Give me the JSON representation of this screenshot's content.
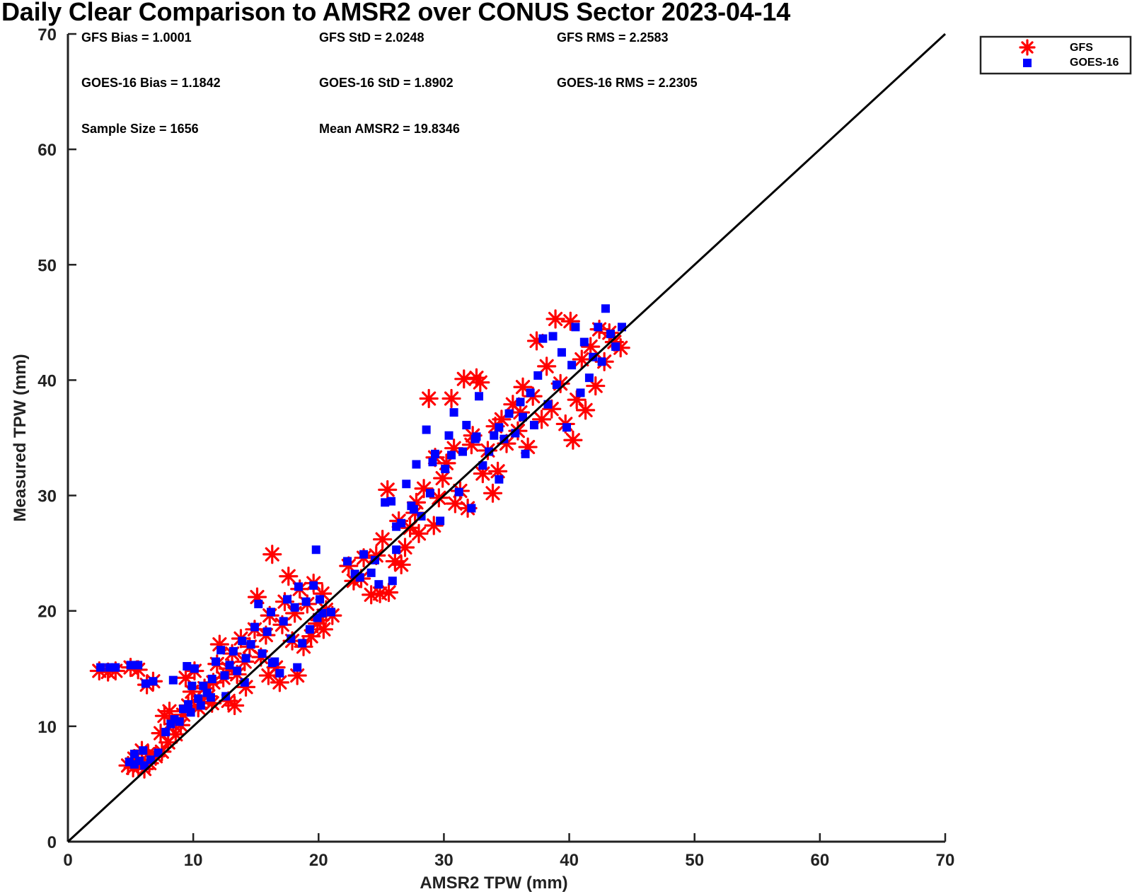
{
  "chart_data": {
    "type": "scatter",
    "title": "Daily Clear Comparison to AMSR2 over CONUS Sector 2023-04-14",
    "xlabel": "AMSR2 TPW (mm)",
    "ylabel": "Measured TPW (mm)",
    "xlim": [
      0,
      70
    ],
    "ylim": [
      0,
      70
    ],
    "xticks": [
      "0",
      "10",
      "20",
      "30",
      "40",
      "50",
      "60",
      "70"
    ],
    "yticks": [
      "0",
      "10",
      "20",
      "30",
      "40",
      "50",
      "60",
      "70"
    ],
    "grid": false,
    "legend_position": "outside-top-right",
    "reference_line": {
      "from": [
        0,
        0
      ],
      "to": [
        70,
        70
      ],
      "color": "#000000"
    },
    "stats": {
      "gfs_bias": "GFS Bias = 1.0001",
      "gfs_std": "GFS StD = 2.0248",
      "gfs_rms": "GFS RMS = 2.2583",
      "goes_bias": "GOES-16 Bias = 1.1842",
      "goes_std": "GOES-16 StD = 1.8902",
      "goes_rms": "GOES-16 RMS = 2.2305",
      "sample_size": "Sample Size = 1656",
      "mean_amsr2": "Mean AMSR2 = 19.8346"
    },
    "series": [
      {
        "name": "GFS",
        "marker": "asterisk",
        "color": "#ff0000",
        "points": [
          [
            2.5,
            14.8
          ],
          [
            3.2,
            14.7
          ],
          [
            3.8,
            14.8
          ],
          [
            5.0,
            15.1
          ],
          [
            5.6,
            14.9
          ],
          [
            6.3,
            13.6
          ],
          [
            6.8,
            13.9
          ],
          [
            4.8,
            6.6
          ],
          [
            5.2,
            6.4
          ],
          [
            5.6,
            6.7
          ],
          [
            6.1,
            6.3
          ],
          [
            6.5,
            6.8
          ],
          [
            7.0,
            7.4
          ],
          [
            5.3,
            7.2
          ],
          [
            5.9,
            7.9
          ],
          [
            6.4,
            7.6
          ],
          [
            7.5,
            7.8
          ],
          [
            8.0,
            8.6
          ],
          [
            8.6,
            9.3
          ],
          [
            7.4,
            9.4
          ],
          [
            7.7,
            10.9
          ],
          [
            8.1,
            11.3
          ],
          [
            8.4,
            10.2
          ],
          [
            9.0,
            10.1
          ],
          [
            9.2,
            11.0
          ],
          [
            9.6,
            11.8
          ],
          [
            9.9,
            13.0
          ],
          [
            10.1,
            14.8
          ],
          [
            10.5,
            12.1
          ],
          [
            10.9,
            13.3
          ],
          [
            11.2,
            12.6
          ],
          [
            11.6,
            13.8
          ],
          [
            11.9,
            15.4
          ],
          [
            12.1,
            17.1
          ],
          [
            12.4,
            14.2
          ],
          [
            12.8,
            15.0
          ],
          [
            13.1,
            16.3
          ],
          [
            13.5,
            14.5
          ],
          [
            13.8,
            17.6
          ],
          [
            14.1,
            15.6
          ],
          [
            14.5,
            16.9
          ],
          [
            14.9,
            18.4
          ],
          [
            15.1,
            21.2
          ],
          [
            15.4,
            16.0
          ],
          [
            15.8,
            17.9
          ],
          [
            16.1,
            19.6
          ],
          [
            16.3,
            24.9
          ],
          [
            16.6,
            15.1
          ],
          [
            16.9,
            13.8
          ],
          [
            17.1,
            18.8
          ],
          [
            17.3,
            20.8
          ],
          [
            17.6,
            23.0
          ],
          [
            17.9,
            17.4
          ],
          [
            18.1,
            19.8
          ],
          [
            18.5,
            21.9
          ],
          [
            18.8,
            16.9
          ],
          [
            19.1,
            20.6
          ],
          [
            19.4,
            17.8
          ],
          [
            19.6,
            22.4
          ],
          [
            19.9,
            18.9
          ],
          [
            20.1,
            19.2
          ],
          [
            20.3,
            21.5
          ],
          [
            20.6,
            20.1
          ],
          [
            20.4,
            18.4
          ],
          [
            16.0,
            14.4
          ],
          [
            14.2,
            13.4
          ],
          [
            12.8,
            12.2
          ],
          [
            11.5,
            12.0
          ],
          [
            13.3,
            11.8
          ],
          [
            18.3,
            14.4
          ],
          [
            10.4,
            11.6
          ],
          [
            9.4,
            14.2
          ],
          [
            22.4,
            23.9
          ],
          [
            22.8,
            22.6
          ],
          [
            23.6,
            24.6
          ],
          [
            24.2,
            21.4
          ],
          [
            24.9,
            21.5
          ],
          [
            25.6,
            21.6
          ],
          [
            25.1,
            26.2
          ],
          [
            25.5,
            30.5
          ],
          [
            26.1,
            24.3
          ],
          [
            26.6,
            24.0
          ],
          [
            26.9,
            25.5
          ],
          [
            27.3,
            27.2
          ],
          [
            27.7,
            28.5
          ],
          [
            28.0,
            26.7
          ],
          [
            28.4,
            30.6
          ],
          [
            28.8,
            38.4
          ],
          [
            29.2,
            27.4
          ],
          [
            29.6,
            29.8
          ],
          [
            29.9,
            31.5
          ],
          [
            30.2,
            32.8
          ],
          [
            30.6,
            38.4
          ],
          [
            30.9,
            29.3
          ],
          [
            31.3,
            30.4
          ],
          [
            31.6,
            40.1
          ],
          [
            31.9,
            28.9
          ],
          [
            32.2,
            34.4
          ],
          [
            32.6,
            40.2
          ],
          [
            32.9,
            39.8
          ],
          [
            33.1,
            31.9
          ],
          [
            33.5,
            33.9
          ],
          [
            33.9,
            30.2
          ],
          [
            34.3,
            32.1
          ],
          [
            34.6,
            36.6
          ],
          [
            35.0,
            34.5
          ],
          [
            35.5,
            37.9
          ],
          [
            35.9,
            35.6
          ],
          [
            36.3,
            39.4
          ],
          [
            36.7,
            34.2
          ],
          [
            37.1,
            38.6
          ],
          [
            37.4,
            43.4
          ],
          [
            37.8,
            36.6
          ],
          [
            38.2,
            41.2
          ],
          [
            38.6,
            37.5
          ],
          [
            38.9,
            45.3
          ],
          [
            39.3,
            39.7
          ],
          [
            39.7,
            36.2
          ],
          [
            40.1,
            45.1
          ],
          [
            40.3,
            34.8
          ],
          [
            40.6,
            38.3
          ],
          [
            41.0,
            41.8
          ],
          [
            41.3,
            37.4
          ],
          [
            41.7,
            42.9
          ],
          [
            42.1,
            39.5
          ],
          [
            42.4,
            44.4
          ],
          [
            42.8,
            41.6
          ],
          [
            43.2,
            44.1
          ],
          [
            43.6,
            43.3
          ],
          [
            44.1,
            42.8
          ],
          [
            36.1,
            37.2
          ],
          [
            34.1,
            36.0
          ],
          [
            32.3,
            35.2
          ],
          [
            30.8,
            34.1
          ],
          [
            29.3,
            33.3
          ],
          [
            27.8,
            29.4
          ],
          [
            26.4,
            27.8
          ],
          [
            24.6,
            24.8
          ],
          [
            23.4,
            22.8
          ],
          [
            21.1,
            19.6
          ]
        ]
      },
      {
        "name": "GOES-16",
        "marker": "square",
        "color": "#0000ff",
        "points": [
          [
            2.6,
            15.1
          ],
          [
            3.3,
            15.1
          ],
          [
            3.8,
            15.1
          ],
          [
            5.0,
            15.3
          ],
          [
            5.6,
            15.3
          ],
          [
            6.2,
            13.7
          ],
          [
            6.8,
            13.9
          ],
          [
            8.4,
            14.0
          ],
          [
            4.9,
            6.9
          ],
          [
            5.3,
            6.7
          ],
          [
            5.7,
            7.0
          ],
          [
            6.1,
            6.6
          ],
          [
            6.6,
            7.1
          ],
          [
            5.3,
            7.6
          ],
          [
            6.0,
            7.9
          ],
          [
            7.2,
            7.7
          ],
          [
            7.8,
            9.5
          ],
          [
            8.2,
            10.2
          ],
          [
            8.5,
            10.6
          ],
          [
            8.9,
            10.4
          ],
          [
            9.2,
            11.5
          ],
          [
            9.6,
            11.9
          ],
          [
            9.9,
            13.5
          ],
          [
            10.1,
            15.0
          ],
          [
            10.4,
            12.4
          ],
          [
            10.8,
            13.5
          ],
          [
            11.1,
            12.9
          ],
          [
            11.5,
            14.1
          ],
          [
            11.8,
            15.6
          ],
          [
            12.2,
            16.6
          ],
          [
            12.5,
            14.4
          ],
          [
            12.9,
            15.3
          ],
          [
            13.2,
            16.5
          ],
          [
            13.5,
            14.8
          ],
          [
            13.9,
            17.4
          ],
          [
            14.2,
            15.9
          ],
          [
            14.6,
            17.1
          ],
          [
            14.9,
            18.6
          ],
          [
            15.2,
            20.6
          ],
          [
            15.5,
            16.3
          ],
          [
            15.9,
            18.2
          ],
          [
            16.2,
            19.9
          ],
          [
            16.5,
            15.6
          ],
          [
            16.9,
            14.6
          ],
          [
            17.2,
            19.1
          ],
          [
            17.5,
            21.0
          ],
          [
            17.8,
            17.6
          ],
          [
            18.1,
            20.3
          ],
          [
            18.4,
            22.1
          ],
          [
            18.7,
            17.2
          ],
          [
            19.0,
            20.8
          ],
          [
            19.3,
            18.4
          ],
          [
            19.6,
            22.2
          ],
          [
            19.9,
            19.4
          ],
          [
            20.1,
            21.0
          ],
          [
            20.3,
            19.8
          ],
          [
            19.8,
            25.3
          ],
          [
            12.6,
            12.6
          ],
          [
            11.4,
            12.5
          ],
          [
            14.1,
            13.8
          ],
          [
            16.3,
            15.5
          ],
          [
            18.3,
            15.1
          ],
          [
            10.6,
            11.8
          ],
          [
            9.8,
            11.2
          ],
          [
            9.5,
            15.2
          ],
          [
            22.3,
            24.3
          ],
          [
            22.9,
            23.2
          ],
          [
            23.6,
            24.9
          ],
          [
            24.2,
            23.3
          ],
          [
            24.8,
            22.3
          ],
          [
            25.3,
            29.4
          ],
          [
            25.9,
            22.6
          ],
          [
            25.8,
            29.5
          ],
          [
            26.2,
            25.3
          ],
          [
            26.6,
            27.6
          ],
          [
            27.0,
            31.0
          ],
          [
            27.4,
            29.1
          ],
          [
            27.8,
            32.7
          ],
          [
            28.2,
            28.2
          ],
          [
            28.6,
            35.7
          ],
          [
            28.9,
            30.2
          ],
          [
            29.3,
            33.6
          ],
          [
            29.7,
            27.8
          ],
          [
            30.1,
            32.3
          ],
          [
            30.4,
            35.2
          ],
          [
            30.8,
            37.2
          ],
          [
            31.2,
            30.3
          ],
          [
            31.5,
            33.8
          ],
          [
            31.8,
            36.1
          ],
          [
            32.2,
            28.9
          ],
          [
            32.5,
            34.9
          ],
          [
            32.8,
            38.6
          ],
          [
            33.1,
            32.6
          ],
          [
            33.6,
            33.8
          ],
          [
            34.0,
            35.2
          ],
          [
            34.4,
            31.4
          ],
          [
            34.8,
            34.9
          ],
          [
            35.2,
            37.1
          ],
          [
            35.7,
            35.4
          ],
          [
            36.1,
            38.1
          ],
          [
            36.5,
            33.6
          ],
          [
            36.9,
            38.9
          ],
          [
            37.2,
            36.1
          ],
          [
            37.5,
            40.4
          ],
          [
            37.9,
            43.6
          ],
          [
            38.3,
            37.9
          ],
          [
            38.7,
            43.8
          ],
          [
            39.0,
            39.6
          ],
          [
            39.4,
            42.4
          ],
          [
            39.8,
            35.9
          ],
          [
            40.2,
            41.3
          ],
          [
            40.5,
            44.6
          ],
          [
            40.9,
            38.9
          ],
          [
            41.2,
            43.3
          ],
          [
            41.6,
            40.2
          ],
          [
            41.9,
            42.0
          ],
          [
            42.3,
            44.6
          ],
          [
            42.6,
            41.6
          ],
          [
            42.9,
            46.2
          ],
          [
            43.3,
            44.0
          ],
          [
            43.7,
            42.9
          ],
          [
            44.2,
            44.6
          ],
          [
            36.3,
            36.8
          ],
          [
            34.4,
            35.9
          ],
          [
            32.6,
            35.1
          ],
          [
            30.6,
            33.5
          ],
          [
            29.1,
            32.9
          ],
          [
            27.6,
            28.8
          ],
          [
            26.2,
            27.3
          ],
          [
            24.5,
            24.4
          ],
          [
            23.3,
            22.9
          ],
          [
            21.0,
            19.9
          ]
        ]
      }
    ]
  }
}
